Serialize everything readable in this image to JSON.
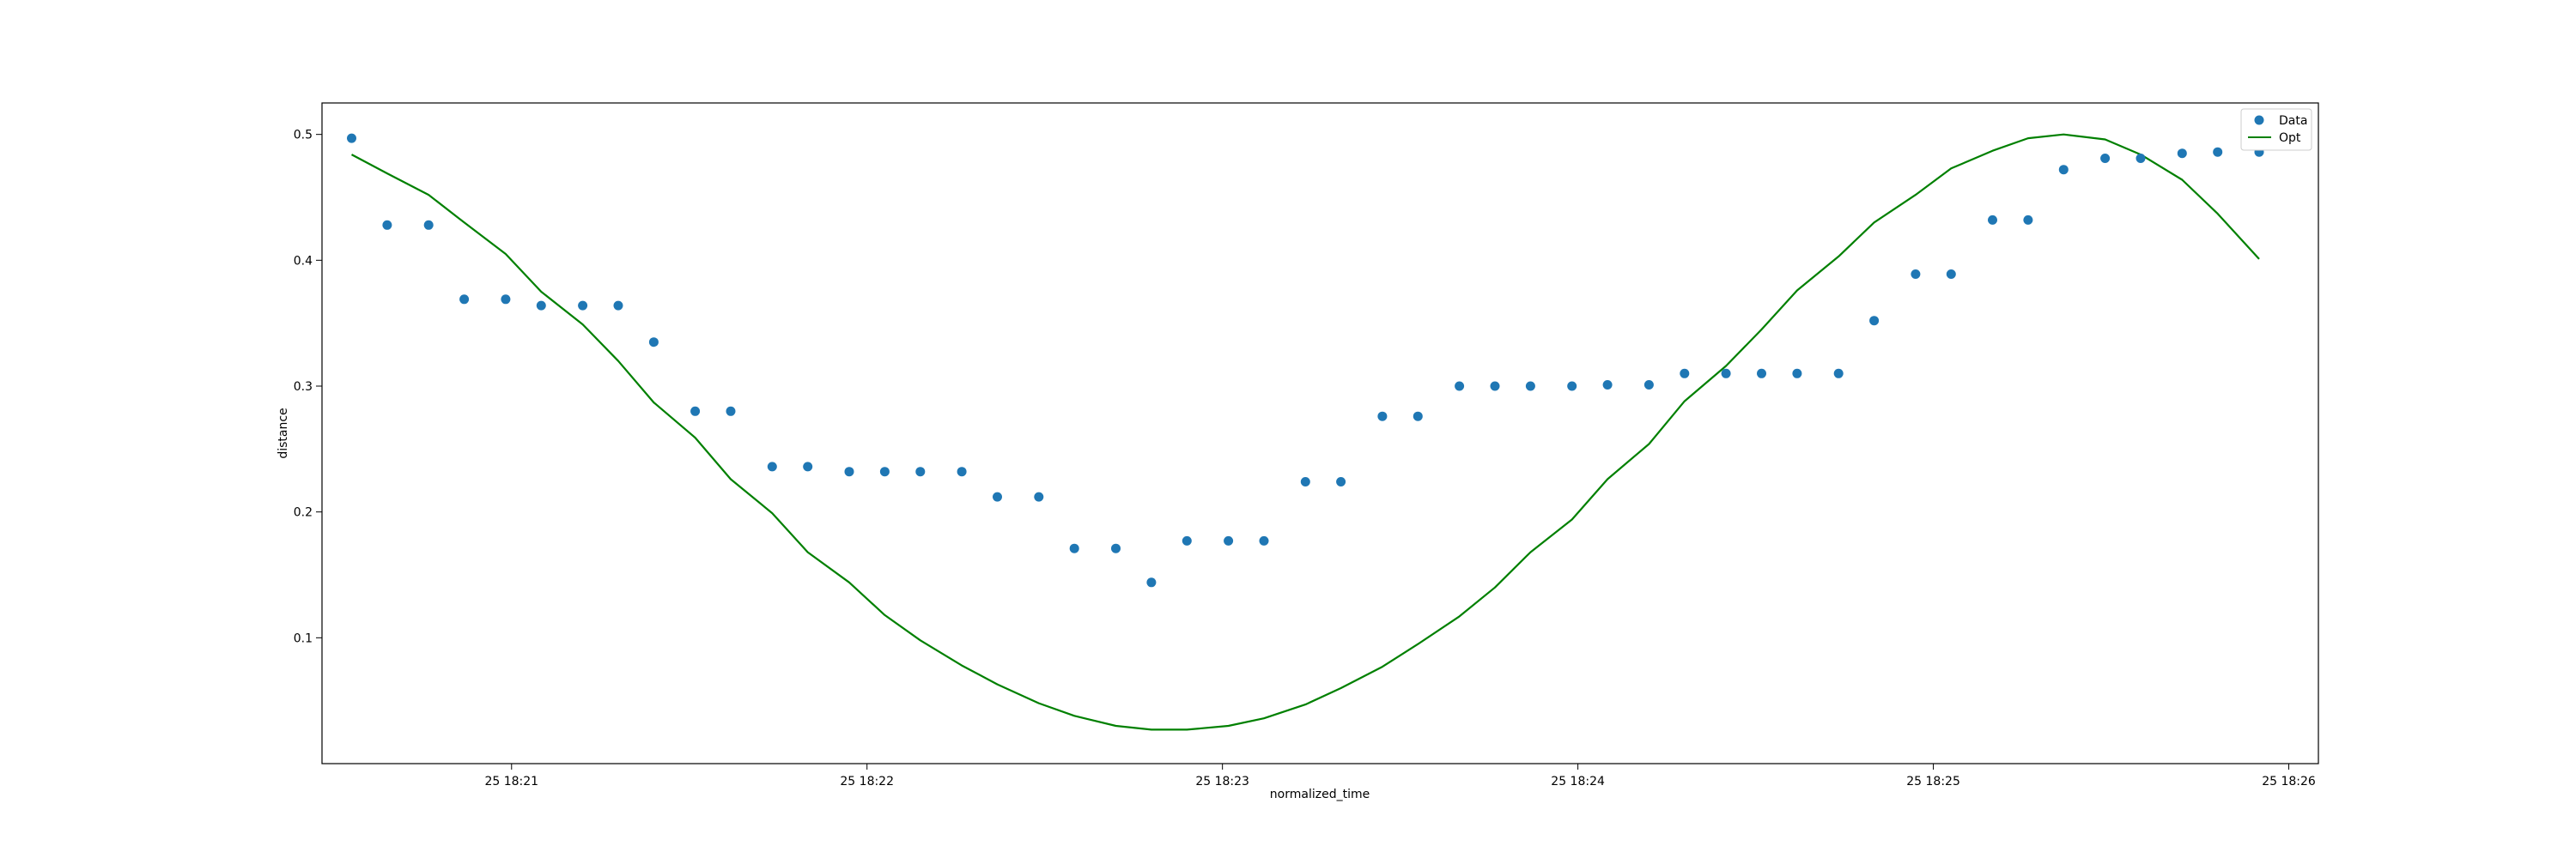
{
  "chart_data": {
    "type": "scatter",
    "xlabel": "normalized_time",
    "ylabel": "distance",
    "x_tick_labels": [
      "25 18:21",
      "25 18:22",
      "25 18:23",
      "25 18:24",
      "25 18:25",
      "25 18:26"
    ],
    "y_tick_labels": [
      "0.1",
      "0.2",
      "0.3",
      "0.4",
      "0.5"
    ],
    "y_ticks": [
      0.1,
      0.2,
      0.3,
      0.4,
      0.5
    ],
    "ylim": [
      0.0,
      0.525
    ],
    "xlim": [
      "18:20:28",
      "18:26:05"
    ],
    "grid": false,
    "legend": {
      "placement": "top-right",
      "entries": [
        "Data",
        "Opt"
      ]
    },
    "colors": {
      "data": "#1f77b4",
      "opt": "#008000"
    },
    "series": [
      {
        "name": "Data",
        "kind": "scatter",
        "x": [
          "18:20:33",
          "18:20:39",
          "18:20:46",
          "18:20:52",
          "18:20:59",
          "18:21:05",
          "18:21:12",
          "18:21:18",
          "18:21:24",
          "18:21:31",
          "18:21:37",
          "18:21:44",
          "18:21:50",
          "18:21:57",
          "18:22:03",
          "18:22:09",
          "18:22:16",
          "18:22:22",
          "18:22:29",
          "18:22:35",
          "18:22:42",
          "18:22:48",
          "18:22:54",
          "18:23:01",
          "18:23:07",
          "18:23:14",
          "18:23:20",
          "18:23:27",
          "18:23:33",
          "18:23:40",
          "18:23:46",
          "18:23:52",
          "18:23:59",
          "18:24:05",
          "18:24:12",
          "18:24:18",
          "18:24:25",
          "18:24:31",
          "18:24:37",
          "18:24:44",
          "18:24:50",
          "18:24:57",
          "18:25:03",
          "18:25:10",
          "18:25:16",
          "18:25:22",
          "18:25:29",
          "18:25:35",
          "18:25:42",
          "18:25:48",
          "18:25:55"
        ],
        "y": [
          0.497,
          0.428,
          0.428,
          0.369,
          0.369,
          0.364,
          0.364,
          0.364,
          0.335,
          0.28,
          0.28,
          0.236,
          0.236,
          0.232,
          0.232,
          0.232,
          0.232,
          0.212,
          0.212,
          0.171,
          0.171,
          0.144,
          0.177,
          0.177,
          0.177,
          0.224,
          0.224,
          0.276,
          0.276,
          0.3,
          0.3,
          0.3,
          0.3,
          0.301,
          0.301,
          0.31,
          0.31,
          0.31,
          0.31,
          0.31,
          0.352,
          0.389,
          0.389,
          0.432,
          0.432,
          0.472,
          0.481,
          0.481,
          0.485,
          0.486,
          0.486
        ]
      },
      {
        "name": "Opt",
        "kind": "line",
        "x": [
          "18:20:33",
          "18:20:39",
          "18:20:46",
          "18:20:52",
          "18:20:59",
          "18:21:05",
          "18:21:12",
          "18:21:18",
          "18:21:24",
          "18:21:31",
          "18:21:37",
          "18:21:44",
          "18:21:50",
          "18:21:57",
          "18:22:03",
          "18:22:09",
          "18:22:16",
          "18:22:22",
          "18:22:29",
          "18:22:35",
          "18:22:42",
          "18:22:48",
          "18:22:54",
          "18:23:01",
          "18:23:07",
          "18:23:14",
          "18:23:20",
          "18:23:27",
          "18:23:33",
          "18:23:40",
          "18:23:46",
          "18:23:52",
          "18:23:59",
          "18:24:05",
          "18:24:12",
          "18:24:18",
          "18:24:25",
          "18:24:31",
          "18:24:37",
          "18:24:44",
          "18:24:50",
          "18:24:57",
          "18:25:03",
          "18:25:10",
          "18:25:16",
          "18:25:22",
          "18:25:29",
          "18:25:35",
          "18:25:42",
          "18:25:48",
          "18:25:55"
        ],
        "y": [
          0.484,
          0.469,
          0.452,
          0.43,
          0.405,
          0.375,
          0.349,
          0.32,
          0.287,
          0.259,
          0.226,
          0.199,
          0.168,
          0.144,
          0.118,
          0.098,
          0.078,
          0.063,
          0.048,
          0.038,
          0.03,
          0.027,
          0.027,
          0.03,
          0.036,
          0.047,
          0.06,
          0.077,
          0.095,
          0.117,
          0.14,
          0.168,
          0.194,
          0.226,
          0.254,
          0.288,
          0.316,
          0.345,
          0.376,
          0.403,
          0.43,
          0.452,
          0.473,
          0.487,
          0.497,
          0.5,
          0.496,
          0.484,
          0.464,
          0.437,
          0.401
        ]
      }
    ]
  }
}
